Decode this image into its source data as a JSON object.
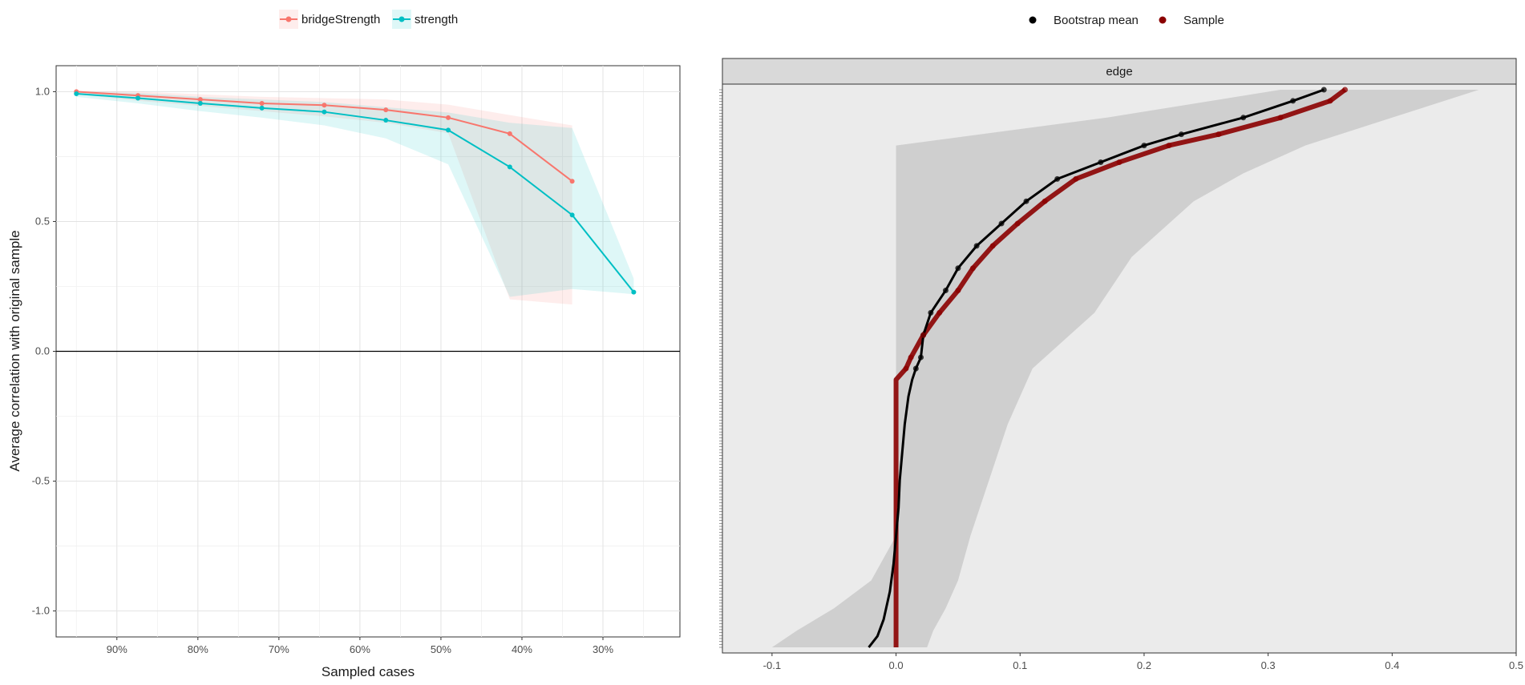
{
  "chart_data": [
    {
      "type": "line",
      "xlabel": "Sampled cases",
      "ylabel": "Average correlation with original sample",
      "x_tick_labels": [
        "90%",
        "80%",
        "70%",
        "60%",
        "50%",
        "40%",
        "30%"
      ],
      "x_ticks": [
        0.9,
        0.8,
        0.7,
        0.6,
        0.5,
        0.4,
        0.3
      ],
      "xlim_reversed": [
        0.975,
        0.205
      ],
      "ylim": [
        -1.1,
        1.1
      ],
      "y_ticks": [
        -1.0,
        -0.5,
        0.0,
        0.5,
        1.0
      ],
      "y_tick_labels": [
        "-1.0",
        "-0.5",
        "0.0",
        "0.5",
        "1.0"
      ],
      "hline": 0,
      "grid": true,
      "legend_position": "top",
      "series": [
        {
          "name": "bridgeStrength",
          "color": "#F8766D",
          "x": [
            0.95,
            0.874,
            0.797,
            0.721,
            0.644,
            0.568,
            0.491,
            0.415,
            0.338
          ],
          "y": [
            1.0,
            0.985,
            0.97,
            0.955,
            0.948,
            0.93,
            0.9,
            0.838,
            0.655
          ],
          "band_lower": [
            0.99,
            0.965,
            0.945,
            0.925,
            0.905,
            0.88,
            0.84,
            0.2,
            0.18
          ],
          "band_upper": [
            1.0,
            1.0,
            0.99,
            0.98,
            0.975,
            0.97,
            0.95,
            0.91,
            0.87
          ]
        },
        {
          "name": "strength",
          "color": "#00BFC4",
          "x": [
            0.95,
            0.874,
            0.797,
            0.721,
            0.644,
            0.568,
            0.491,
            0.415,
            0.338,
            0.262
          ],
          "y": [
            0.992,
            0.975,
            0.955,
            0.937,
            0.922,
            0.89,
            0.852,
            0.71,
            0.525,
            0.228
          ],
          "band_lower": [
            0.98,
            0.955,
            0.925,
            0.9,
            0.87,
            0.82,
            0.72,
            0.21,
            0.24,
            0.22
          ],
          "band_upper": [
            1.0,
            0.995,
            0.98,
            0.97,
            0.96,
            0.94,
            0.92,
            0.88,
            0.86,
            0.28
          ]
        }
      ]
    },
    {
      "type": "line",
      "facet_label": "edge",
      "xlim": [
        -0.14,
        0.5
      ],
      "x_ticks": [
        -0.1,
        0.0,
        0.1,
        0.2,
        0.3,
        0.4,
        0.5
      ],
      "x_tick_labels": [
        "-0.1",
        "0.0",
        "0.1",
        "0.2",
        "0.3",
        "0.4",
        "0.5"
      ],
      "legend_position": "top",
      "legend": [
        "Bootstrap mean",
        "Sample"
      ],
      "n_edges": 190,
      "series": [
        {
          "name": "Sample",
          "color": "#8B0000",
          "rank_fraction": [
            0.0,
            0.02,
            0.05,
            0.08,
            0.1,
            0.13,
            0.16,
            0.2,
            0.24,
            0.28,
            0.32,
            0.36,
            0.4,
            0.44,
            0.48,
            0.5,
            0.52,
            0.55,
            0.6,
            0.65,
            0.7,
            0.75,
            0.8,
            0.85,
            0.9,
            0.95,
            1.0
          ],
          "values": [
            0.362,
            0.35,
            0.31,
            0.26,
            0.22,
            0.18,
            0.145,
            0.12,
            0.098,
            0.078,
            0.062,
            0.05,
            0.035,
            0.022,
            0.012,
            0.008,
            0.0,
            0.0,
            0.0,
            0.0,
            0.0,
            0.0,
            0.0,
            0.0,
            0.0,
            0.0,
            0.0
          ]
        },
        {
          "name": "Bootstrap mean",
          "color": "#000000",
          "rank_fraction": [
            0.0,
            0.02,
            0.05,
            0.08,
            0.1,
            0.13,
            0.16,
            0.2,
            0.24,
            0.28,
            0.32,
            0.36,
            0.4,
            0.44,
            0.48,
            0.5,
            0.52,
            0.55,
            0.6,
            0.65,
            0.7,
            0.75,
            0.8,
            0.85,
            0.9,
            0.95,
            0.98,
            1.0
          ],
          "values": [
            0.345,
            0.32,
            0.28,
            0.23,
            0.2,
            0.165,
            0.13,
            0.105,
            0.085,
            0.065,
            0.05,
            0.04,
            0.028,
            0.022,
            0.02,
            0.016,
            0.013,
            0.01,
            0.007,
            0.005,
            0.003,
            0.002,
            0.0,
            -0.002,
            -0.005,
            -0.01,
            -0.015,
            -0.022
          ]
        }
      ],
      "band": {
        "rank_fraction": [
          0.0,
          0.05,
          0.1,
          0.15,
          0.2,
          0.3,
          0.4,
          0.5,
          0.6,
          0.7,
          0.8,
          0.88,
          0.93,
          0.97,
          1.0
        ],
        "lower": [
          0.31,
          0.17,
          0.0,
          0.0,
          0.0,
          0.0,
          0.0,
          0.0,
          0.0,
          0.0,
          0.0,
          -0.02,
          -0.05,
          -0.08,
          -0.1
        ],
        "upper": [
          0.47,
          0.4,
          0.33,
          0.28,
          0.24,
          0.19,
          0.16,
          0.11,
          0.09,
          0.075,
          0.06,
          0.05,
          0.04,
          0.03,
          0.025
        ]
      }
    }
  ]
}
